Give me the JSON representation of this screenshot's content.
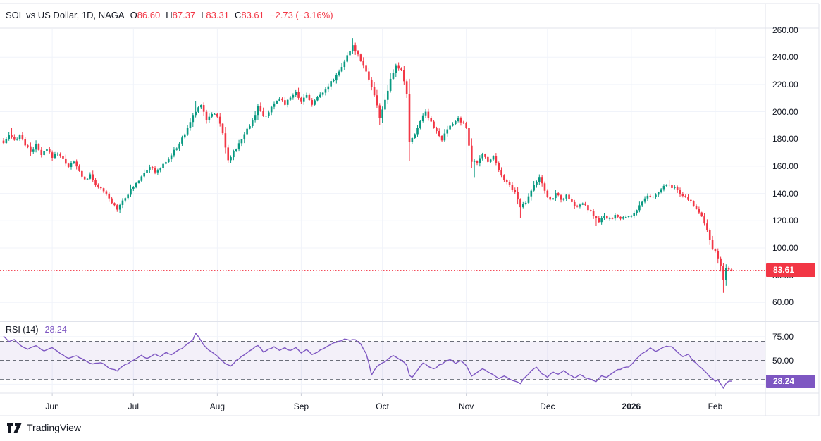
{
  "header": {
    "symbol_title": "SOL vs US Dollar, 1D, NAGA",
    "open_label": "O",
    "open": "86.60",
    "high_label": "H",
    "high": "87.37",
    "low_label": "L",
    "low": "83.31",
    "close_label": "C",
    "close": "83.61",
    "change": "−2.73 (−3.16%)"
  },
  "price_axis": {
    "ticks": [
      {
        "value": 260,
        "label": "260.00"
      },
      {
        "value": 240,
        "label": "240.00"
      },
      {
        "value": 220,
        "label": "220.00"
      },
      {
        "value": 200,
        "label": "200.00"
      },
      {
        "value": 180,
        "label": "180.00"
      },
      {
        "value": 160,
        "label": "160.00"
      },
      {
        "value": 140,
        "label": "140.00"
      },
      {
        "value": 120,
        "label": "120.00"
      },
      {
        "value": 100,
        "label": "100.00"
      },
      {
        "value": 80,
        "label": "80.00"
      },
      {
        "value": 60,
        "label": "60.00"
      }
    ],
    "badge_text": "83.61"
  },
  "rsi_pane": {
    "title": "RSI (14)",
    "value": "28.24",
    "badge_text": "28.24",
    "ticks": [
      {
        "value": 75,
        "label": "75.00"
      },
      {
        "value": 50,
        "label": "50.00"
      }
    ]
  },
  "time_axis": {
    "labels": [
      {
        "day": 18,
        "text": "Jun"
      },
      {
        "day": 48,
        "text": "Jul"
      },
      {
        "day": 79,
        "text": "Aug"
      },
      {
        "day": 110,
        "text": "Sep"
      },
      {
        "day": 140,
        "text": "Oct"
      },
      {
        "day": 171,
        "text": "Nov"
      },
      {
        "day": 201,
        "text": "Dec"
      },
      {
        "day": 232,
        "text": "2026",
        "bold": true
      },
      {
        "day": 263,
        "text": "Feb"
      }
    ]
  },
  "footer": {
    "brand": "TradingView"
  },
  "colors": {
    "up": "#089981",
    "down": "#f23645",
    "price_badge": "#f23645",
    "rsi_line": "#7e57c2",
    "rsi_badge": "#7e57c2",
    "rsi_band": "rgba(126,87,194,0.09)",
    "grid": "#f0f3fa",
    "border": "#e0e3eb",
    "text": "#131722",
    "dashed": "#6a6d78"
  },
  "chart_data": {
    "type": "candlestick",
    "title": "SOL vs US Dollar, 1D, NAGA",
    "legend_ohlc": {
      "open": 86.6,
      "high": 87.37,
      "low": 83.31,
      "close": 83.61,
      "change": -2.73,
      "change_pct": -3.16
    },
    "price_pane": {
      "ylim": [
        46.2,
        261.3
      ],
      "gridline_values": [
        260,
        240,
        220,
        200,
        180,
        160,
        140,
        120,
        100,
        80,
        60
      ],
      "last_price": 83.61
    },
    "candles": {
      "count": 270,
      "close_waypoints": [
        [
          0,
          177
        ],
        [
          2,
          182
        ],
        [
          4,
          179
        ],
        [
          6,
          183
        ],
        [
          8,
          176
        ],
        [
          10,
          171
        ],
        [
          12,
          175
        ],
        [
          14,
          168
        ],
        [
          16,
          172
        ],
        [
          18,
          167
        ],
        [
          20,
          170
        ],
        [
          22,
          165
        ],
        [
          24,
          160
        ],
        [
          26,
          163
        ],
        [
          28,
          156
        ],
        [
          30,
          150
        ],
        [
          32,
          153
        ],
        [
          34,
          147
        ],
        [
          36,
          143
        ],
        [
          38,
          139
        ],
        [
          40,
          133
        ],
        [
          42,
          129
        ],
        [
          44,
          135
        ],
        [
          46,
          140
        ],
        [
          48,
          145
        ],
        [
          50,
          150
        ],
        [
          52,
          156
        ],
        [
          54,
          160
        ],
        [
          56,
          155
        ],
        [
          58,
          159
        ],
        [
          60,
          163
        ],
        [
          62,
          168
        ],
        [
          64,
          174
        ],
        [
          66,
          180
        ],
        [
          68,
          188
        ],
        [
          70,
          197
        ],
        [
          72,
          203
        ],
        [
          73,
          206
        ],
        [
          75,
          194
        ],
        [
          77,
          199
        ],
        [
          79,
          197
        ],
        [
          81,
          184
        ],
        [
          83,
          165
        ],
        [
          85,
          170
        ],
        [
          87,
          176
        ],
        [
          89,
          184
        ],
        [
          91,
          190
        ],
        [
          93,
          198
        ],
        [
          94,
          204
        ],
        [
          96,
          196
        ],
        [
          98,
          200
        ],
        [
          100,
          205
        ],
        [
          102,
          210
        ],
        [
          104,
          206
        ],
        [
          106,
          211
        ],
        [
          108,
          214
        ],
        [
          110,
          208
        ],
        [
          112,
          212
        ],
        [
          114,
          206
        ],
        [
          116,
          210
        ],
        [
          118,
          215
        ],
        [
          120,
          219
        ],
        [
          122,
          224
        ],
        [
          124,
          230
        ],
        [
          126,
          237
        ],
        [
          128,
          244
        ],
        [
          129,
          248
        ],
        [
          131,
          242
        ],
        [
          133,
          235
        ],
        [
          135,
          224
        ],
        [
          137,
          212
        ],
        [
          139,
          196
        ],
        [
          141,
          208
        ],
        [
          143,
          223
        ],
        [
          145,
          234
        ],
        [
          147,
          230
        ],
        [
          149,
          213
        ],
        [
          150,
          178
        ],
        [
          152,
          183
        ],
        [
          154,
          194
        ],
        [
          156,
          200
        ],
        [
          158,
          193
        ],
        [
          160,
          185
        ],
        [
          162,
          179
        ],
        [
          164,
          187
        ],
        [
          166,
          191
        ],
        [
          168,
          195
        ],
        [
          170,
          191
        ],
        [
          171,
          188
        ],
        [
          173,
          164
        ],
        [
          175,
          162
        ],
        [
          177,
          169
        ],
        [
          179,
          164
        ],
        [
          181,
          167
        ],
        [
          183,
          158
        ],
        [
          185,
          150
        ],
        [
          187,
          146
        ],
        [
          189,
          141
        ],
        [
          191,
          130
        ],
        [
          193,
          134
        ],
        [
          195,
          143
        ],
        [
          197,
          149
        ],
        [
          198,
          152
        ],
        [
          200,
          141
        ],
        [
          202,
          135
        ],
        [
          204,
          140
        ],
        [
          206,
          136
        ],
        [
          208,
          138
        ],
        [
          210,
          133
        ],
        [
          212,
          130
        ],
        [
          214,
          133
        ],
        [
          216,
          128
        ],
        [
          218,
          124
        ],
        [
          220,
          119
        ],
        [
          222,
          123
        ],
        [
          224,
          121
        ],
        [
          226,
          124
        ],
        [
          228,
          121
        ],
        [
          230,
          123
        ],
        [
          232,
          124
        ],
        [
          234,
          128
        ],
        [
          236,
          133
        ],
        [
          238,
          138
        ],
        [
          240,
          137
        ],
        [
          242,
          141
        ],
        [
          244,
          145
        ],
        [
          246,
          146
        ],
        [
          248,
          144
        ],
        [
          250,
          139
        ],
        [
          252,
          137
        ],
        [
          254,
          134
        ],
        [
          256,
          129
        ],
        [
          258,
          124
        ],
        [
          259,
          118
        ],
        [
          260,
          112
        ],
        [
          261,
          106
        ],
        [
          262,
          100
        ],
        [
          263,
          97
        ],
        [
          264,
          92
        ],
        [
          265,
          86
        ],
        [
          266,
          77
        ],
        [
          267,
          86
        ],
        [
          268,
          85
        ],
        [
          269,
          83.61
        ]
      ],
      "wick_overrides": [
        {
          "day": 3,
          "high": 188
        },
        {
          "day": 71,
          "high": 208
        },
        {
          "day": 129,
          "high": 254
        },
        {
          "day": 139,
          "low": 190
        },
        {
          "day": 150,
          "low": 164
        },
        {
          "day": 174,
          "low": 152
        },
        {
          "day": 191,
          "low": 122
        },
        {
          "day": 219,
          "low": 116
        },
        {
          "day": 246,
          "high": 150
        },
        {
          "day": 266,
          "low": 67
        }
      ]
    },
    "rsi": {
      "period": 14,
      "last": 28.24,
      "ylim": [
        15.7,
        90.3
      ],
      "levels": [
        70,
        50,
        30
      ],
      "band": [
        30,
        70
      ],
      "waypoints": [
        [
          0,
          75
        ],
        [
          2,
          70
        ],
        [
          4,
          72
        ],
        [
          6,
          66
        ],
        [
          9,
          62
        ],
        [
          12,
          65
        ],
        [
          15,
          60
        ],
        [
          18,
          63
        ],
        [
          21,
          57
        ],
        [
          24,
          52
        ],
        [
          27,
          55
        ],
        [
          30,
          50
        ],
        [
          33,
          46
        ],
        [
          36,
          48
        ],
        [
          39,
          42
        ],
        [
          42,
          39
        ],
        [
          44,
          44
        ],
        [
          46,
          47
        ],
        [
          48,
          50
        ],
        [
          51,
          55
        ],
        [
          53,
          52
        ],
        [
          56,
          57
        ],
        [
          58,
          54
        ],
        [
          60,
          58
        ],
        [
          62,
          56
        ],
        [
          64,
          60
        ],
        [
          66,
          63
        ],
        [
          68,
          67
        ],
        [
          70,
          72
        ],
        [
          71,
          79
        ],
        [
          72,
          75
        ],
        [
          74,
          66
        ],
        [
          76,
          61
        ],
        [
          78,
          57
        ],
        [
          80,
          52
        ],
        [
          82,
          46
        ],
        [
          84,
          44
        ],
        [
          86,
          50
        ],
        [
          88,
          54
        ],
        [
          90,
          58
        ],
        [
          92,
          62
        ],
        [
          94,
          66
        ],
        [
          96,
          59
        ],
        [
          98,
          62
        ],
        [
          100,
          64
        ],
        [
          102,
          61
        ],
        [
          104,
          63
        ],
        [
          106,
          60
        ],
        [
          108,
          64
        ],
        [
          110,
          58
        ],
        [
          112,
          61
        ],
        [
          114,
          56
        ],
        [
          116,
          59
        ],
        [
          118,
          62
        ],
        [
          120,
          65
        ],
        [
          122,
          68
        ],
        [
          124,
          70
        ],
        [
          126,
          72
        ],
        [
          128,
          71
        ],
        [
          130,
          72
        ],
        [
          132,
          67
        ],
        [
          134,
          57
        ],
        [
          135,
          47
        ],
        [
          136,
          35
        ],
        [
          138,
          44
        ],
        [
          140,
          47
        ],
        [
          142,
          51
        ],
        [
          144,
          55
        ],
        [
          146,
          52
        ],
        [
          148,
          48
        ],
        [
          149,
          45
        ],
        [
          150,
          34
        ],
        [
          151,
          32
        ],
        [
          153,
          40
        ],
        [
          155,
          47
        ],
        [
          157,
          44
        ],
        [
          159,
          41
        ],
        [
          161,
          45
        ],
        [
          163,
          48
        ],
        [
          165,
          51
        ],
        [
          167,
          47
        ],
        [
          169,
          50
        ],
        [
          171,
          45
        ],
        [
          173,
          34
        ],
        [
          175,
          37
        ],
        [
          177,
          41
        ],
        [
          179,
          38
        ],
        [
          181,
          35
        ],
        [
          183,
          31
        ],
        [
          185,
          34
        ],
        [
          187,
          30
        ],
        [
          189,
          28
        ],
        [
          191,
          26
        ],
        [
          193,
          33
        ],
        [
          195,
          39
        ],
        [
          197,
          43
        ],
        [
          199,
          36
        ],
        [
          201,
          32
        ],
        [
          203,
          38
        ],
        [
          205,
          35
        ],
        [
          207,
          39
        ],
        [
          209,
          35
        ],
        [
          211,
          32
        ],
        [
          213,
          35
        ],
        [
          215,
          32
        ],
        [
          217,
          30
        ],
        [
          219,
          28
        ],
        [
          221,
          34
        ],
        [
          223,
          32
        ],
        [
          225,
          37
        ],
        [
          227,
          40
        ],
        [
          229,
          42
        ],
        [
          231,
          43
        ],
        [
          233,
          49
        ],
        [
          235,
          55
        ],
        [
          237,
          59
        ],
        [
          239,
          63
        ],
        [
          241,
          59
        ],
        [
          243,
          63
        ],
        [
          245,
          65
        ],
        [
          247,
          64
        ],
        [
          249,
          59
        ],
        [
          251,
          54
        ],
        [
          253,
          57
        ],
        [
          255,
          49
        ],
        [
          257,
          44
        ],
        [
          259,
          39
        ],
        [
          261,
          33
        ],
        [
          263,
          28
        ],
        [
          264,
          30
        ],
        [
          265,
          25
        ],
        [
          266,
          21
        ],
        [
          267,
          26
        ],
        [
          268,
          28.24
        ],
        [
          269,
          28.24
        ]
      ]
    }
  }
}
